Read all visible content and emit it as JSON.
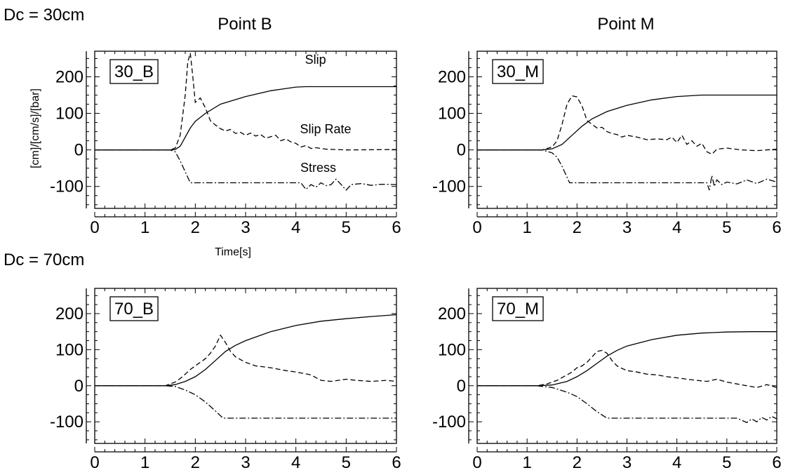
{
  "figure": {
    "row_titles": [
      "Dc = 30cm",
      "Dc = 70cm"
    ],
    "column_titles": [
      "Point B",
      "Point M"
    ],
    "ylabel": "[cm]/[cm/s]/[bar]",
    "xlabel": "Time[s]"
  },
  "chart_data": [
    {
      "type": "line",
      "panel_label": "30_B",
      "xlim": [
        0,
        6
      ],
      "ylim": [
        -160,
        270
      ],
      "x_ticks": [
        0,
        1,
        2,
        3,
        4,
        5,
        6
      ],
      "y_ticks": [
        -100,
        0,
        100,
        200
      ],
      "annotations": [
        "Slip",
        "Slip Rate",
        "Stress"
      ],
      "series": [
        {
          "name": "Slip",
          "style": "solid",
          "points": [
            [
              0,
              0
            ],
            [
              1.5,
              0
            ],
            [
              1.6,
              1
            ],
            [
              1.7,
              10
            ],
            [
              1.8,
              35
            ],
            [
              1.9,
              60
            ],
            [
              2.0,
              78
            ],
            [
              2.2,
              100
            ],
            [
              2.5,
              125
            ],
            [
              3.0,
              146
            ],
            [
              3.5,
              162
            ],
            [
              4.0,
              172
            ],
            [
              4.2,
              173
            ],
            [
              6.0,
              173
            ]
          ]
        },
        {
          "name": "Slip Rate",
          "style": "dashed",
          "points": [
            [
              0,
              0
            ],
            [
              1.5,
              0
            ],
            [
              1.6,
              5
            ],
            [
              1.7,
              40
            ],
            [
              1.8,
              150
            ],
            [
              1.85,
              240
            ],
            [
              1.9,
              265
            ],
            [
              1.95,
              200
            ],
            [
              2.0,
              130
            ],
            [
              2.1,
              142
            ],
            [
              2.2,
              115
            ],
            [
              2.3,
              80
            ],
            [
              2.4,
              68
            ],
            [
              2.5,
              58
            ],
            [
              2.6,
              52
            ],
            [
              2.7,
              56
            ],
            [
              2.8,
              45
            ],
            [
              2.9,
              48
            ],
            [
              3.0,
              40
            ],
            [
              3.1,
              46
            ],
            [
              3.2,
              38
            ],
            [
              3.3,
              42
            ],
            [
              3.4,
              32
            ],
            [
              3.5,
              36
            ],
            [
              3.6,
              40
            ],
            [
              3.7,
              25
            ],
            [
              3.8,
              30
            ],
            [
              3.9,
              22
            ],
            [
              4.0,
              18
            ],
            [
              4.1,
              8
            ],
            [
              4.2,
              12
            ],
            [
              4.3,
              4
            ],
            [
              4.4,
              6
            ],
            [
              4.6,
              2
            ],
            [
              5.0,
              0
            ],
            [
              6.0,
              1
            ]
          ]
        },
        {
          "name": "Stress",
          "style": "dashdot",
          "points": [
            [
              0,
              0
            ],
            [
              1.5,
              0
            ],
            [
              1.6,
              -5
            ],
            [
              1.7,
              -30
            ],
            [
              1.8,
              -60
            ],
            [
              1.9,
              -90
            ],
            [
              4.1,
              -90
            ],
            [
              4.2,
              -108
            ],
            [
              4.3,
              -95
            ],
            [
              4.4,
              -102
            ],
            [
              4.5,
              -90
            ],
            [
              4.6,
              -98
            ],
            [
              4.7,
              -95
            ],
            [
              4.8,
              -80
            ],
            [
              4.9,
              -95
            ],
            [
              5.0,
              -110
            ],
            [
              5.1,
              -95
            ],
            [
              5.3,
              -92
            ],
            [
              5.5,
              -97
            ],
            [
              5.7,
              -94
            ],
            [
              6.0,
              -95
            ]
          ]
        }
      ]
    },
    {
      "type": "line",
      "panel_label": "30_M",
      "xlim": [
        0,
        6
      ],
      "ylim": [
        -160,
        270
      ],
      "x_ticks": [
        0,
        1,
        2,
        3,
        4,
        5,
        6
      ],
      "y_ticks": [
        -100,
        0,
        100,
        200
      ],
      "series": [
        {
          "name": "Slip",
          "style": "solid",
          "points": [
            [
              0,
              0
            ],
            [
              1.3,
              0
            ],
            [
              1.5,
              3
            ],
            [
              1.7,
              15
            ],
            [
              1.9,
              40
            ],
            [
              2.1,
              65
            ],
            [
              2.3,
              85
            ],
            [
              2.6,
              105
            ],
            [
              3.0,
              122
            ],
            [
              3.5,
              137
            ],
            [
              4.0,
              146
            ],
            [
              4.5,
              150
            ],
            [
              5.0,
              150
            ],
            [
              6.0,
              150
            ]
          ]
        },
        {
          "name": "Slip Rate",
          "style": "dashed",
          "points": [
            [
              0,
              0
            ],
            [
              1.3,
              0
            ],
            [
              1.5,
              8
            ],
            [
              1.6,
              25
            ],
            [
              1.7,
              70
            ],
            [
              1.8,
              125
            ],
            [
              1.9,
              148
            ],
            [
              2.0,
              145
            ],
            [
              2.1,
              120
            ],
            [
              2.2,
              80
            ],
            [
              2.3,
              70
            ],
            [
              2.4,
              60
            ],
            [
              2.5,
              62
            ],
            [
              2.6,
              50
            ],
            [
              2.7,
              45
            ],
            [
              2.8,
              42
            ],
            [
              2.9,
              35
            ],
            [
              3.0,
              40
            ],
            [
              3.2,
              35
            ],
            [
              3.4,
              28
            ],
            [
              3.6,
              30
            ],
            [
              3.8,
              28
            ],
            [
              3.9,
              35
            ],
            [
              4.0,
              20
            ],
            [
              4.1,
              40
            ],
            [
              4.2,
              15
            ],
            [
              4.3,
              25
            ],
            [
              4.4,
              10
            ],
            [
              4.5,
              18
            ],
            [
              4.6,
              -5
            ],
            [
              4.7,
              -12
            ],
            [
              4.8,
              2
            ],
            [
              5.0,
              5
            ],
            [
              5.3,
              0
            ],
            [
              5.6,
              -2
            ],
            [
              6.0,
              2
            ]
          ]
        },
        {
          "name": "Stress",
          "style": "dashdot",
          "points": [
            [
              0,
              0
            ],
            [
              1.3,
              0
            ],
            [
              1.5,
              -8
            ],
            [
              1.6,
              -20
            ],
            [
              1.7,
              -45
            ],
            [
              1.8,
              -75
            ],
            [
              1.85,
              -90
            ],
            [
              4.6,
              -90
            ],
            [
              4.65,
              -110
            ],
            [
              4.7,
              -70
            ],
            [
              4.75,
              -100
            ],
            [
              4.8,
              -82
            ],
            [
              4.9,
              -95
            ],
            [
              5.0,
              -88
            ],
            [
              5.2,
              -93
            ],
            [
              5.4,
              -82
            ],
            [
              5.6,
              -92
            ],
            [
              5.8,
              -80
            ],
            [
              6.0,
              -88
            ]
          ]
        }
      ]
    },
    {
      "type": "line",
      "panel_label": "70_B",
      "xlim": [
        0,
        6
      ],
      "ylim": [
        -160,
        270
      ],
      "x_ticks": [
        0,
        1,
        2,
        3,
        4,
        5,
        6
      ],
      "y_ticks": [
        -100,
        0,
        100,
        200
      ],
      "series": [
        {
          "name": "Slip",
          "style": "solid",
          "points": [
            [
              0,
              0
            ],
            [
              1.4,
              0
            ],
            [
              1.6,
              3
            ],
            [
              1.8,
              12
            ],
            [
              2.0,
              25
            ],
            [
              2.2,
              45
            ],
            [
              2.4,
              70
            ],
            [
              2.6,
              95
            ],
            [
              2.8,
              112
            ],
            [
              3.0,
              125
            ],
            [
              3.5,
              150
            ],
            [
              4.0,
              167
            ],
            [
              4.5,
              179
            ],
            [
              5.0,
              186
            ],
            [
              5.5,
              192
            ],
            [
              6.0,
              197
            ]
          ]
        },
        {
          "name": "Slip Rate",
          "style": "dashed",
          "points": [
            [
              0,
              0
            ],
            [
              1.4,
              0
            ],
            [
              1.5,
              5
            ],
            [
              1.6,
              10
            ],
            [
              1.7,
              20
            ],
            [
              1.8,
              32
            ],
            [
              1.9,
              45
            ],
            [
              2.0,
              55
            ],
            [
              2.2,
              75
            ],
            [
              2.3,
              90
            ],
            [
              2.4,
              110
            ],
            [
              2.5,
              140
            ],
            [
              2.6,
              120
            ],
            [
              2.7,
              95
            ],
            [
              2.8,
              80
            ],
            [
              3.0,
              65
            ],
            [
              3.2,
              55
            ],
            [
              3.5,
              50
            ],
            [
              3.8,
              42
            ],
            [
              4.0,
              38
            ],
            [
              4.3,
              30
            ],
            [
              4.5,
              15
            ],
            [
              4.7,
              12
            ],
            [
              5.0,
              18
            ],
            [
              5.2,
              15
            ],
            [
              5.5,
              12
            ],
            [
              5.8,
              15
            ],
            [
              6.0,
              12
            ]
          ]
        },
        {
          "name": "Stress",
          "style": "dashdot",
          "points": [
            [
              0,
              0
            ],
            [
              1.4,
              0
            ],
            [
              1.6,
              -2
            ],
            [
              1.8,
              -12
            ],
            [
              2.0,
              -25
            ],
            [
              2.2,
              -45
            ],
            [
              2.4,
              -70
            ],
            [
              2.55,
              -90
            ],
            [
              6.0,
              -90
            ]
          ]
        }
      ]
    },
    {
      "type": "line",
      "panel_label": "70_M",
      "xlim": [
        0,
        6
      ],
      "ylim": [
        -160,
        270
      ],
      "x_ticks": [
        0,
        1,
        2,
        3,
        4,
        5,
        6
      ],
      "y_ticks": [
        -100,
        0,
        100,
        200
      ],
      "series": [
        {
          "name": "Slip",
          "style": "solid",
          "points": [
            [
              0,
              0
            ],
            [
              1.2,
              0
            ],
            [
              1.5,
              2
            ],
            [
              1.8,
              12
            ],
            [
              2.0,
              25
            ],
            [
              2.2,
              42
            ],
            [
              2.4,
              62
            ],
            [
              2.6,
              82
            ],
            [
              2.8,
              98
            ],
            [
              3.0,
              110
            ],
            [
              3.5,
              128
            ],
            [
              4.0,
              140
            ],
            [
              4.5,
              146
            ],
            [
              5.0,
              149
            ],
            [
              5.5,
              150
            ],
            [
              6.0,
              150
            ]
          ]
        },
        {
          "name": "Slip Rate",
          "style": "dashed",
          "points": [
            [
              0,
              0
            ],
            [
              1.2,
              0
            ],
            [
              1.4,
              5
            ],
            [
              1.6,
              15
            ],
            [
              1.8,
              30
            ],
            [
              1.9,
              38
            ],
            [
              2.0,
              50
            ],
            [
              2.1,
              55
            ],
            [
              2.2,
              65
            ],
            [
              2.3,
              80
            ],
            [
              2.4,
              95
            ],
            [
              2.5,
              98
            ],
            [
              2.6,
              90
            ],
            [
              2.7,
              70
            ],
            [
              2.8,
              55
            ],
            [
              2.9,
              48
            ],
            [
              3.0,
              42
            ],
            [
              3.2,
              38
            ],
            [
              3.4,
              32
            ],
            [
              3.6,
              30
            ],
            [
              3.8,
              25
            ],
            [
              4.0,
              22
            ],
            [
              4.2,
              18
            ],
            [
              4.4,
              15
            ],
            [
              4.6,
              12
            ],
            [
              4.8,
              18
            ],
            [
              5.0,
              10
            ],
            [
              5.2,
              5
            ],
            [
              5.4,
              0
            ],
            [
              5.6,
              -5
            ],
            [
              5.8,
              3
            ],
            [
              6.0,
              -5
            ]
          ]
        },
        {
          "name": "Stress",
          "style": "dashdot",
          "points": [
            [
              0,
              0
            ],
            [
              1.2,
              0
            ],
            [
              1.5,
              -5
            ],
            [
              1.8,
              -18
            ],
            [
              2.0,
              -30
            ],
            [
              2.2,
              -50
            ],
            [
              2.4,
              -72
            ],
            [
              2.6,
              -90
            ],
            [
              5.2,
              -90
            ],
            [
              5.4,
              -102
            ],
            [
              5.5,
              -92
            ],
            [
              5.6,
              -100
            ],
            [
              5.7,
              -88
            ],
            [
              5.8,
              -95
            ],
            [
              5.9,
              -85
            ],
            [
              6.0,
              -92
            ]
          ]
        }
      ]
    }
  ]
}
